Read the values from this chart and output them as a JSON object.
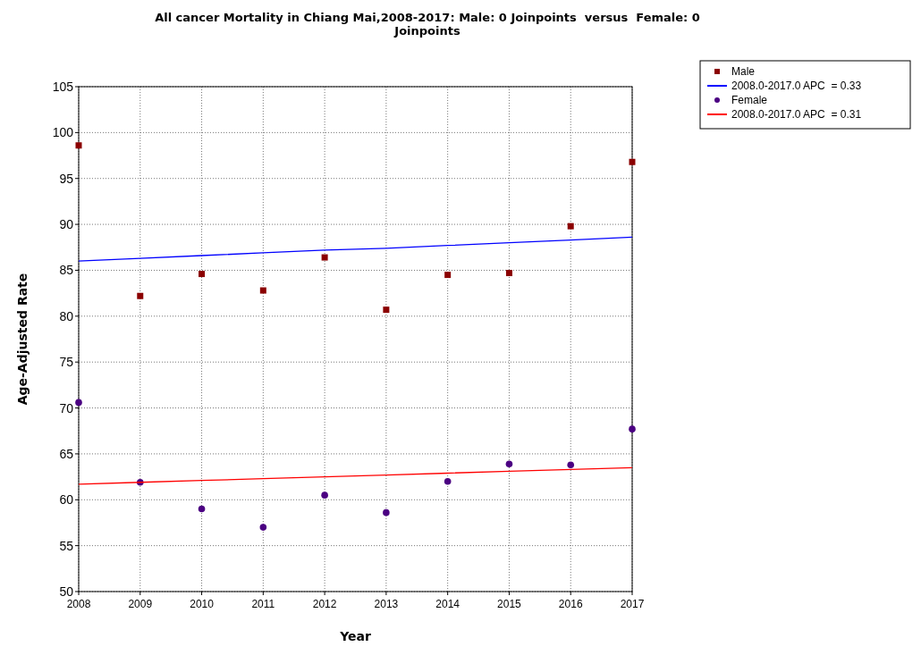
{
  "chart_data": {
    "type": "scatter",
    "title": "All cancer Mortality in Chiang Mai,2008-2017: Male: 0 Joinpoints  versus  Female: 0 Joinpoints",
    "xlabel": "Year",
    "ylabel": "Age-Adjusted Rate",
    "x": [
      2008,
      2009,
      2010,
      2011,
      2012,
      2013,
      2014,
      2015,
      2016,
      2017
    ],
    "series": [
      {
        "name": "Male",
        "marker": "square",
        "color": "#8b0000",
        "values": [
          98.6,
          82.2,
          84.6,
          82.8,
          86.4,
          80.7,
          84.5,
          84.7,
          89.8,
          96.8
        ]
      },
      {
        "name": "2008.0-2017.0 APC  = 0.33",
        "type": "line",
        "color": "#0000ff",
        "values": [
          86.0,
          86.3,
          86.6,
          86.9,
          87.2,
          87.4,
          87.7,
          88.0,
          88.3,
          88.6
        ]
      },
      {
        "name": "Female",
        "marker": "circle",
        "color": "#4b0082",
        "values": [
          70.6,
          61.9,
          59.0,
          57.0,
          60.5,
          58.6,
          62.0,
          63.9,
          63.8,
          67.7
        ]
      },
      {
        "name": "2008.0-2017.0 APC  = 0.31",
        "type": "line",
        "color": "#ff0000",
        "values": [
          61.7,
          61.9,
          62.1,
          62.3,
          62.5,
          62.7,
          62.9,
          63.1,
          63.3,
          63.5
        ]
      }
    ],
    "xlim": [
      2008,
      2017
    ],
    "xticks": [
      2008,
      2009,
      2010,
      2011,
      2012,
      2013,
      2014,
      2015,
      2016,
      2017
    ],
    "ylim": [
      50,
      105
    ],
    "yticks": [
      50,
      55,
      60,
      65,
      70,
      75,
      80,
      85,
      90,
      95,
      100,
      105
    ],
    "grid": true,
    "legend": "top right"
  }
}
